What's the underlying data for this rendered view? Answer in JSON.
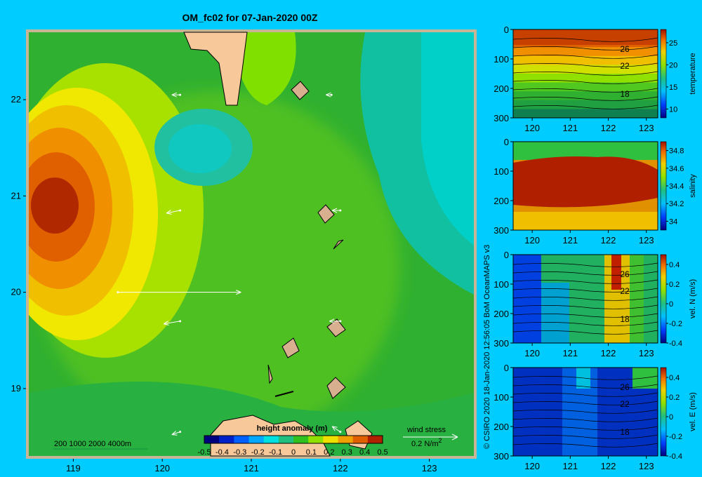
{
  "title": "OM_fc02 for 07-Jan-2020 00Z",
  "credit": "© CSIRO 2020   18-Jan-2020 12:56:05 BoM OceanMAPS v3",
  "colors": {
    "background": "#00ccff",
    "land": "#f7c89a",
    "frame": "#c8b596"
  },
  "map": {
    "xticks": [
      "119",
      "120",
      "121",
      "122",
      "123"
    ],
    "yticks": [
      "22",
      "21",
      "20",
      "19"
    ],
    "xrange": [
      118.5,
      123.5
    ],
    "yrange": [
      18.3,
      22.7
    ],
    "colorbar": {
      "title": "height anomaly  (m)",
      "ticks": [
        "-0.5",
        "-0.4",
        "-0.3",
        "-0.2",
        "-0.1",
        "0",
        "0.1",
        "0.2",
        "0.3",
        "0.4",
        "0.5"
      ],
      "colors": [
        "#00007f",
        "#0020c8",
        "#0060ff",
        "#00a8ff",
        "#00e0e0",
        "#20c080",
        "#30c020",
        "#90e000",
        "#f0e000",
        "#f0a000",
        "#e06000",
        "#b02000"
      ]
    },
    "depth_legend": "200  1000  2000  4000m",
    "wind_stress": {
      "label": "wind stress",
      "scale": "0.2 N/m",
      "superscript": "2"
    }
  },
  "chart_data": [
    {
      "type": "heatmap",
      "title": "OM_fc02 for 07-Jan-2020 00Z",
      "variable": "height anomaly (m)",
      "xlim": [
        118.5,
        123.5
      ],
      "ylim": [
        18.3,
        22.7
      ],
      "clim": [
        -0.5,
        0.5
      ],
      "features": [
        {
          "kind": "high",
          "x": 118.9,
          "y": 20.9,
          "value": 0.5
        },
        {
          "kind": "low",
          "x": 120.6,
          "y": 21.4,
          "value": -0.1
        },
        {
          "kind": "low",
          "x": 123.3,
          "y": 20.8,
          "value": -0.1
        }
      ],
      "wind_vectors": [
        {
          "x": 120.2,
          "y": 22.05,
          "u": -0.03,
          "v": 0
        },
        {
          "x": 121.9,
          "y": 22.05,
          "u": -0.02,
          "v": 0
        },
        {
          "x": 120.2,
          "y": 20.85,
          "u": -0.05,
          "v": -0.01
        },
        {
          "x": 122.0,
          "y": 20.85,
          "u": -0.03,
          "v": 0
        },
        {
          "x": 119.5,
          "y": 20.0,
          "u": 0.45,
          "v": 0
        },
        {
          "x": 120.2,
          "y": 19.7,
          "u": -0.06,
          "v": -0.01
        },
        {
          "x": 122.0,
          "y": 19.7,
          "u": -0.04,
          "v": 0
        },
        {
          "x": 120.2,
          "y": 18.55,
          "u": -0.03,
          "v": -0.01
        },
        {
          "x": 122.0,
          "y": 18.55,
          "u": -0.03,
          "v": 0.02
        }
      ]
    },
    {
      "type": "heatmap",
      "variable": "temperature",
      "xticks": [
        "120",
        "121",
        "122",
        "123"
      ],
      "yticks": [
        "0",
        "100",
        "200",
        "300"
      ],
      "xlim": [
        119.5,
        123.3
      ],
      "ylim": [
        300,
        0
      ],
      "colorbar_ticks": [
        "25",
        "20",
        "15",
        "10"
      ],
      "clim": [
        8,
        28
      ],
      "contour_labels": [
        "26",
        "22",
        "18"
      ]
    },
    {
      "type": "heatmap",
      "variable": "salinity",
      "xticks": [
        "120",
        "121",
        "122",
        "123"
      ],
      "yticks": [
        "0",
        "100",
        "200",
        "300"
      ],
      "xlim": [
        119.5,
        123.3
      ],
      "ylim": [
        300,
        0
      ],
      "colorbar_ticks": [
        "34.8",
        "34.6",
        "34.4",
        "34.2",
        "34"
      ],
      "clim": [
        33.9,
        34.9
      ],
      "contour_labels": []
    },
    {
      "type": "heatmap",
      "variable": "vel. N (m/s)",
      "xticks": [
        "120",
        "121",
        "122",
        "123"
      ],
      "yticks": [
        "0",
        "100",
        "200",
        "300"
      ],
      "xlim": [
        119.5,
        123.3
      ],
      "ylim": [
        300,
        0
      ],
      "colorbar_ticks": [
        "0.4",
        "0.2",
        "0",
        "-0.2",
        "-0.4"
      ],
      "clim": [
        -0.4,
        0.5
      ],
      "contour_labels": [
        "26",
        "22",
        "18"
      ]
    },
    {
      "type": "heatmap",
      "variable": "vel. E (m/s)",
      "xticks": [
        "120",
        "121",
        "122",
        "123"
      ],
      "yticks": [
        "0",
        "100",
        "200",
        "300"
      ],
      "xlim": [
        119.5,
        123.3
      ],
      "ylim": [
        300,
        0
      ],
      "colorbar_ticks": [
        "0.4",
        "0.2",
        "0",
        "-0.2",
        "-0.4"
      ],
      "clim": [
        -0.4,
        0.5
      ],
      "contour_labels": [
        "26",
        "22",
        "18"
      ]
    }
  ]
}
